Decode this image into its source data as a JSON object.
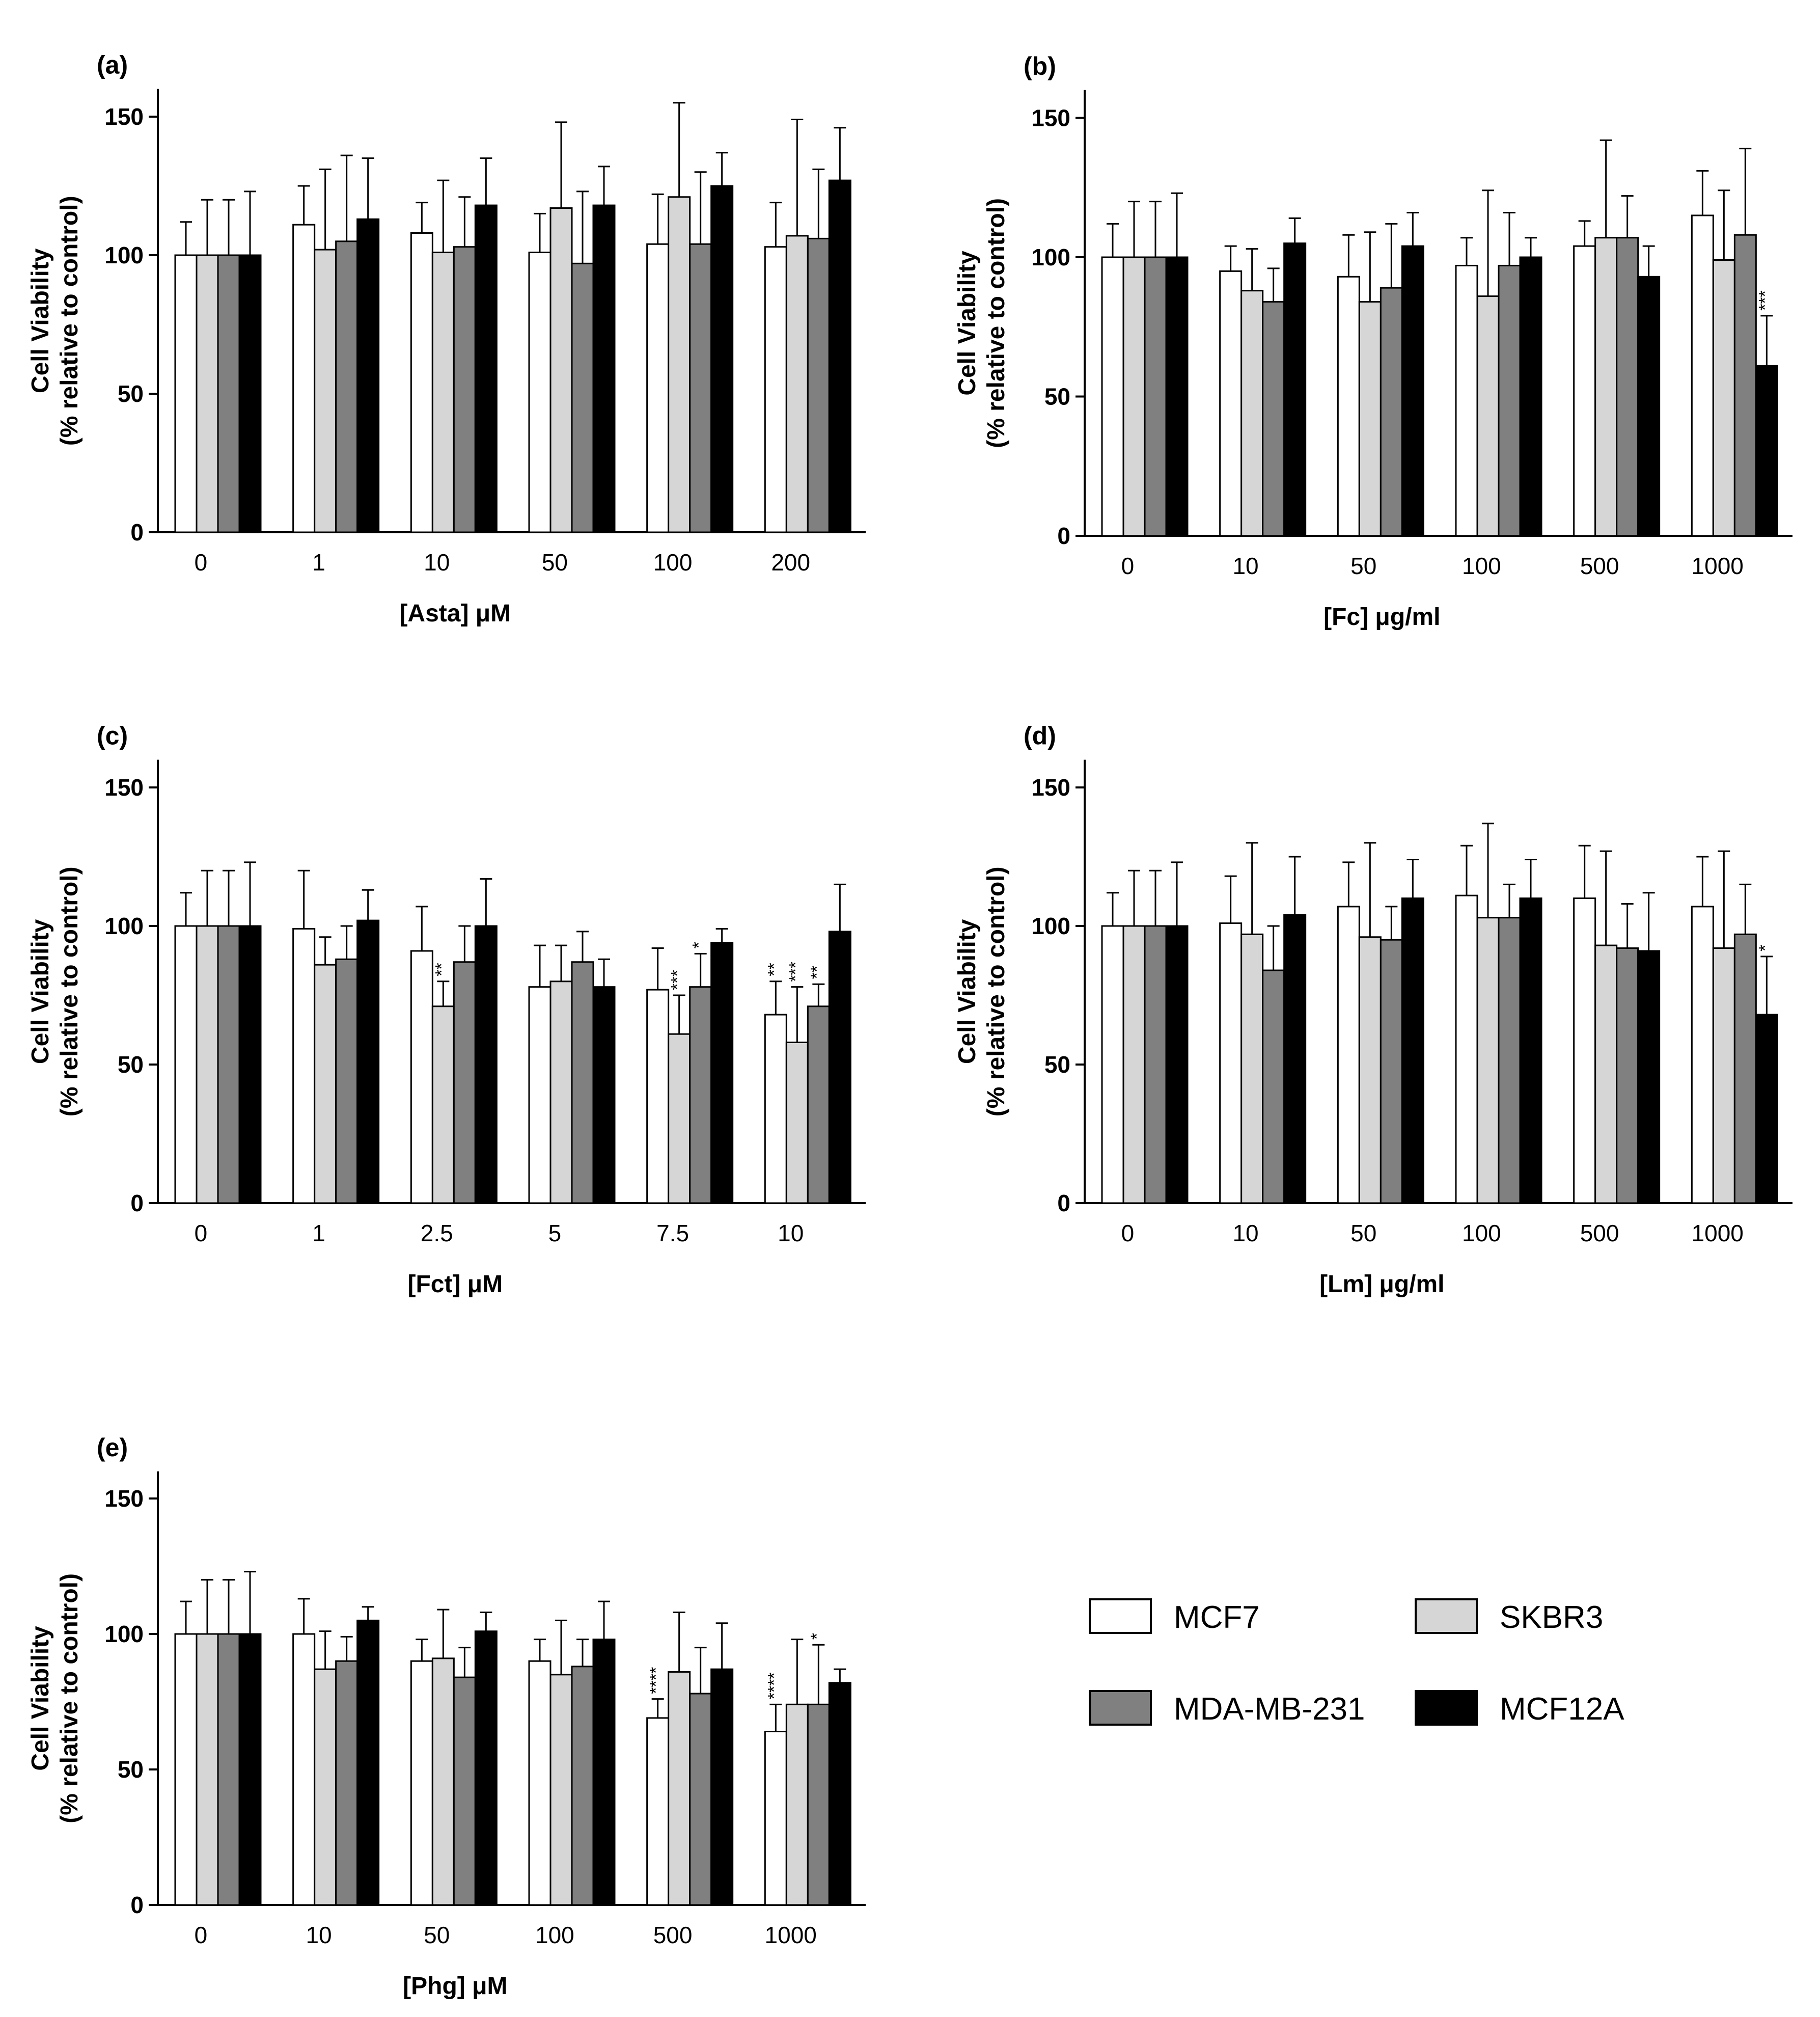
{
  "series_names": [
    "MCF7",
    "SKBR3",
    "MDA-MB-231",
    "MCF12A"
  ],
  "series_colors": [
    "#ffffff",
    "#d6d6d6",
    "#808080",
    "#000000"
  ],
  "ylabel_line1": "Cell Viability",
  "ylabel_line2": "(% relative to control)",
  "legend": {
    "items": [
      {
        "name": "MCF7",
        "color": "#ffffff"
      },
      {
        "name": "SKBR3",
        "color": "#d6d6d6"
      },
      {
        "name": "MDA-MB-231",
        "color": "#808080"
      },
      {
        "name": "MCF12A",
        "color": "#000000"
      }
    ]
  },
  "chart_data": [
    {
      "type": "bar",
      "label": "(a)",
      "xlabel": "[Asta] μM",
      "ylabel": "Cell Viability (% relative to control)",
      "ylim": [
        0,
        160
      ],
      "yticks": [
        "0",
        "50",
        "100",
        "150"
      ],
      "categories": [
        "0",
        "1",
        "10",
        "50",
        "100",
        "200"
      ],
      "series": [
        {
          "name": "MCF7",
          "values": [
            100,
            111,
            108,
            101,
            104,
            103
          ],
          "errors": [
            12,
            14,
            11,
            14,
            18,
            16
          ]
        },
        {
          "name": "SKBR3",
          "values": [
            100,
            102,
            101,
            117,
            121,
            107
          ],
          "errors": [
            20,
            29,
            26,
            31,
            34,
            42
          ]
        },
        {
          "name": "MDA-MB-231",
          "values": [
            100,
            105,
            103,
            97,
            104,
            106
          ],
          "errors": [
            20,
            31,
            18,
            26,
            26,
            25
          ]
        },
        {
          "name": "MCF12A",
          "values": [
            100,
            113,
            118,
            118,
            125,
            127
          ],
          "errors": [
            23,
            22,
            17,
            14,
            12,
            19
          ]
        }
      ],
      "significance": [
        [
          "",
          "",
          "",
          ""
        ],
        [
          "",
          "",
          "",
          ""
        ],
        [
          "",
          "",
          "",
          ""
        ],
        [
          "",
          "",
          "",
          ""
        ],
        [
          "",
          "",
          "",
          ""
        ],
        [
          "",
          "",
          "",
          ""
        ]
      ]
    },
    {
      "type": "bar",
      "label": "(b)",
      "xlabel": "[Fc] μg/ml",
      "ylabel": "Cell Viability (% relative to control)",
      "ylim": [
        0,
        160
      ],
      "yticks": [
        "0",
        "50",
        "100",
        "150"
      ],
      "categories": [
        "0",
        "10",
        "50",
        "100",
        "500",
        "1000"
      ],
      "series": [
        {
          "name": "MCF7",
          "values": [
            100,
            95,
            93,
            97,
            104,
            115
          ],
          "errors": [
            12,
            9,
            15,
            10,
            9,
            16
          ]
        },
        {
          "name": "SKBR3",
          "values": [
            100,
            88,
            84,
            86,
            107,
            99
          ],
          "errors": [
            20,
            15,
            25,
            38,
            35,
            25
          ]
        },
        {
          "name": "MDA-MB-231",
          "values": [
            100,
            84,
            89,
            97,
            107,
            108
          ],
          "errors": [
            20,
            12,
            23,
            19,
            15,
            31
          ]
        },
        {
          "name": "MCF12A",
          "values": [
            100,
            105,
            104,
            100,
            93,
            61
          ],
          "errors": [
            23,
            9,
            12,
            7,
            11,
            18
          ]
        }
      ],
      "significance": [
        [
          "",
          "",
          "",
          ""
        ],
        [
          "",
          "",
          "",
          ""
        ],
        [
          "",
          "",
          "",
          ""
        ],
        [
          "",
          "",
          "",
          ""
        ],
        [
          "",
          "",
          "",
          ""
        ],
        [
          "",
          "",
          "",
          "***"
        ]
      ]
    },
    {
      "type": "bar",
      "label": "(c)",
      "xlabel": "[Fct] μM",
      "ylabel": "Cell Viability (% relative to control)",
      "ylim": [
        0,
        160
      ],
      "yticks": [
        "0",
        "50",
        "100",
        "150"
      ],
      "categories": [
        "0",
        "1",
        "2.5",
        "5",
        "7.5",
        "10"
      ],
      "series": [
        {
          "name": "MCF7",
          "values": [
            100,
            99,
            91,
            78,
            77,
            68
          ],
          "errors": [
            12,
            21,
            16,
            15,
            15,
            12
          ]
        },
        {
          "name": "SKBR3",
          "values": [
            100,
            86,
            71,
            80,
            61,
            58
          ],
          "errors": [
            20,
            10,
            9,
            13,
            14,
            20
          ]
        },
        {
          "name": "MDA-MB-231",
          "values": [
            100,
            88,
            87,
            87,
            78,
            71
          ],
          "errors": [
            20,
            12,
            13,
            11,
            12,
            8
          ]
        },
        {
          "name": "MCF12A",
          "values": [
            100,
            102,
            100,
            78,
            94,
            98
          ],
          "errors": [
            23,
            11,
            17,
            10,
            5,
            17
          ]
        }
      ],
      "significance": [
        [
          "",
          "",
          "",
          ""
        ],
        [
          "",
          "",
          "",
          ""
        ],
        [
          "",
          "**",
          "",
          ""
        ],
        [
          "",
          "",
          "",
          ""
        ],
        [
          "",
          "***",
          "*",
          ""
        ],
        [
          "**",
          "***",
          "**",
          ""
        ]
      ]
    },
    {
      "type": "bar",
      "label": "(d)",
      "xlabel": "[Lm] μg/ml",
      "ylabel": "Cell Viability (% relative to control)",
      "ylim": [
        0,
        160
      ],
      "yticks": [
        "0",
        "50",
        "100",
        "150"
      ],
      "categories": [
        "0",
        "10",
        "50",
        "100",
        "500",
        "1000"
      ],
      "series": [
        {
          "name": "MCF7",
          "values": [
            100,
            101,
            107,
            111,
            110,
            107
          ],
          "errors": [
            12,
            17,
            16,
            18,
            19,
            18
          ]
        },
        {
          "name": "SKBR3",
          "values": [
            100,
            97,
            96,
            103,
            93,
            92
          ],
          "errors": [
            20,
            33,
            34,
            34,
            34,
            35
          ]
        },
        {
          "name": "MDA-MB-231",
          "values": [
            100,
            84,
            95,
            103,
            92,
            97
          ],
          "errors": [
            20,
            16,
            12,
            12,
            16,
            18
          ]
        },
        {
          "name": "MCF12A",
          "values": [
            100,
            104,
            110,
            110,
            91,
            68
          ],
          "errors": [
            23,
            21,
            14,
            14,
            21,
            21
          ]
        }
      ],
      "significance": [
        [
          "",
          "",
          "",
          ""
        ],
        [
          "",
          "",
          "",
          ""
        ],
        [
          "",
          "",
          "",
          ""
        ],
        [
          "",
          "",
          "",
          ""
        ],
        [
          "",
          "",
          "",
          ""
        ],
        [
          "",
          "",
          "",
          "*"
        ]
      ]
    },
    {
      "type": "bar",
      "label": "(e)",
      "xlabel": "[Phg] μM",
      "ylabel": "Cell Viability (% relative to control)",
      "ylim": [
        0,
        160
      ],
      "yticks": [
        "0",
        "50",
        "100",
        "150"
      ],
      "categories": [
        "0",
        "10",
        "50",
        "100",
        "500",
        "1000"
      ],
      "series": [
        {
          "name": "MCF7",
          "values": [
            100,
            100,
            90,
            90,
            69,
            64
          ],
          "errors": [
            12,
            13,
            8,
            8,
            7,
            10
          ]
        },
        {
          "name": "SKBR3",
          "values": [
            100,
            87,
            91,
            85,
            86,
            74
          ],
          "errors": [
            20,
            14,
            18,
            20,
            22,
            24
          ]
        },
        {
          "name": "MDA-MB-231",
          "values": [
            100,
            90,
            84,
            88,
            78,
            74
          ],
          "errors": [
            20,
            9,
            11,
            10,
            17,
            22
          ]
        },
        {
          "name": "MCF12A",
          "values": [
            100,
            105,
            101,
            98,
            87,
            82
          ],
          "errors": [
            23,
            5,
            7,
            14,
            17,
            5
          ]
        }
      ],
      "significance": [
        [
          "",
          "",
          "",
          ""
        ],
        [
          "",
          "",
          "",
          ""
        ],
        [
          "",
          "",
          "",
          ""
        ],
        [
          "",
          "",
          "",
          ""
        ],
        [
          "****",
          "",
          "",
          ""
        ],
        [
          "****",
          "",
          "*",
          ""
        ]
      ]
    }
  ]
}
